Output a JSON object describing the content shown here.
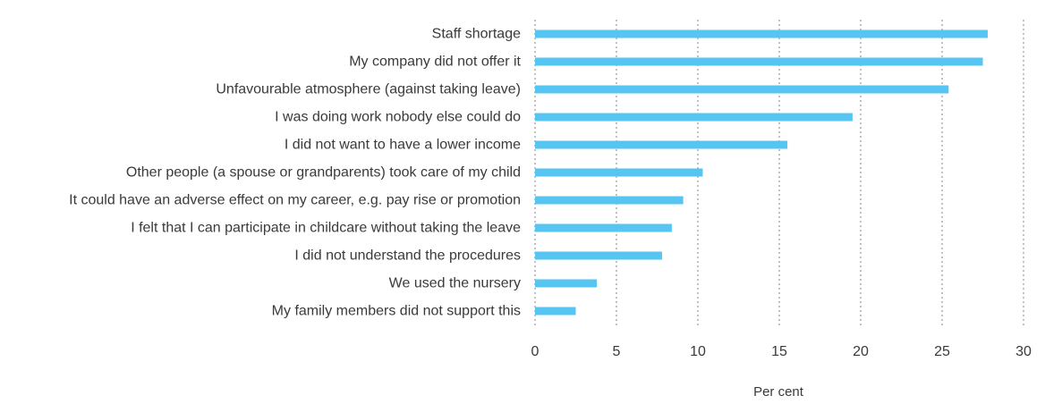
{
  "chart_data": {
    "type": "bar",
    "orientation": "horizontal",
    "categories": [
      "Staff shortage",
      "My company did not offer it",
      "Unfavourable atmosphere (against taking leave)",
      "I was doing work nobody else could do",
      "I did not want to have a lower income",
      "Other people (a spouse or grandparents) took care of my child",
      "It could have an adverse effect on my career, e.g. pay rise or promotion",
      "I felt that I can participate in childcare without taking the leave",
      "I did not understand the procedures",
      "We used the nursery",
      "My family members did not support this"
    ],
    "values": [
      27.8,
      27.5,
      25.4,
      19.5,
      15.5,
      10.3,
      9.1,
      8.4,
      7.8,
      3.8,
      2.5
    ],
    "xlabel": "Per cent",
    "xlim": [
      0,
      30
    ],
    "ticks": [
      0,
      5,
      10,
      15,
      20,
      25,
      30
    ],
    "tick_labels": [
      "0",
      "5",
      "10",
      "15",
      "20",
      "25",
      "30"
    ],
    "grid": "vertical dotted",
    "bar_color": "#57c5f2"
  }
}
